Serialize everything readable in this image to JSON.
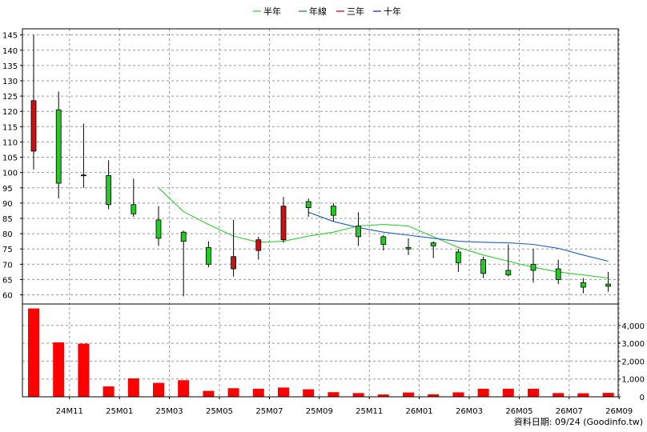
{
  "legend": [
    {
      "label": "半年",
      "color": "#33cc33"
    },
    {
      "label": "年線",
      "color": "#1f5fbf"
    },
    {
      "label": "三年",
      "color": "#cc0000"
    },
    {
      "label": "十年",
      "color": "#2222aa"
    }
  ],
  "source_note": "資料日期: 09/24  (Goodinfo.tw)",
  "chart_data": {
    "type": "candlestick",
    "price_axis": {
      "min": 57,
      "max": 147,
      "ticks": [
        60,
        65,
        70,
        75,
        80,
        85,
        90,
        95,
        100,
        105,
        110,
        115,
        120,
        125,
        130,
        135,
        140,
        145
      ],
      "position": "left"
    },
    "volume_axis": {
      "min": 0,
      "max": 5200,
      "ticks": [
        0,
        1000,
        2000,
        3000,
        4000
      ],
      "tick_labels": [
        "0",
        "1,000",
        "2,000",
        "3,000",
        "4,000"
      ],
      "position": "right"
    },
    "x_labels": [
      {
        "label": "24M11",
        "index": 1
      },
      {
        "label": "25M01",
        "index": 3
      },
      {
        "label": "25M03",
        "index": 5
      },
      {
        "label": "25M05",
        "index": 7
      },
      {
        "label": "25M07",
        "index": 9
      },
      {
        "label": "25M09",
        "index": 11
      },
      {
        "label": "25M11",
        "index": 13
      },
      {
        "label": "26M01",
        "index": 15
      },
      {
        "label": "26M03",
        "index": 17
      },
      {
        "label": "26M05",
        "index": 19
      },
      {
        "label": "26M07",
        "index": 21
      },
      {
        "label": "26M09",
        "index": 23
      }
    ],
    "candles": [
      {
        "open": 107,
        "close": 123.5,
        "high": 145,
        "low": 101
      },
      {
        "open": 120.5,
        "close": 96.5,
        "high": 126.5,
        "low": 91.5
      },
      {
        "open": 99.2,
        "close": 99.0,
        "high": 116,
        "low": 95
      },
      {
        "open": 99,
        "close": 89.5,
        "high": 104,
        "low": 88
      },
      {
        "open": 89.5,
        "close": 86.5,
        "high": 98,
        "low": 85.5
      },
      {
        "open": 84.5,
        "close": 78.5,
        "high": 89,
        "low": 76
      },
      {
        "open": 80.5,
        "close": 77.5,
        "high": 81,
        "low": 59.5
      },
      {
        "open": 75.5,
        "close": 70,
        "high": 77.5,
        "low": 69
      },
      {
        "open": 68.5,
        "close": 72.5,
        "high": 84.5,
        "low": 66
      },
      {
        "open": 74.5,
        "close": 78,
        "high": 79,
        "low": 71.5
      },
      {
        "open": 78,
        "close": 89,
        "high": 92,
        "low": 77
      },
      {
        "open": 90.5,
        "close": 88.5,
        "high": 91.5,
        "low": 85.5
      },
      {
        "open": 89,
        "close": 86,
        "high": 90,
        "low": 84
      },
      {
        "open": 82.5,
        "close": 79,
        "high": 87,
        "low": 76
      },
      {
        "open": 79,
        "close": 76.5,
        "high": 79.5,
        "low": 74.5
      },
      {
        "open": 75.5,
        "close": 75.0,
        "high": 78.5,
        "low": 73
      },
      {
        "open": 77,
        "close": 76,
        "high": 77.5,
        "low": 72
      },
      {
        "open": 74,
        "close": 70.5,
        "high": 75,
        "low": 67.5
      },
      {
        "open": 71.5,
        "close": 67,
        "high": 72.5,
        "low": 65.5
      },
      {
        "open": 68,
        "close": 66.5,
        "high": 76.5,
        "low": 66
      },
      {
        "open": 70,
        "close": 68,
        "high": 75,
        "low": 64
      },
      {
        "open": 68.5,
        "close": 65,
        "high": 71.5,
        "low": 63.5
      },
      {
        "open": 64,
        "close": 62.5,
        "high": 65.5,
        "low": 60.5
      },
      {
        "open": 63.5,
        "close": 62.8,
        "high": 67.5,
        "low": 61
      }
    ],
    "volumes": [
      4950,
      3050,
      2980,
      580,
      1030,
      780,
      930,
      330,
      480,
      450,
      520,
      420,
      260,
      210,
      130,
      240,
      140,
      250,
      450,
      450,
      450,
      210,
      200,
      220
    ],
    "ma_half_year": [
      null,
      null,
      null,
      null,
      null,
      95,
      87.2,
      83,
      79.2,
      77.2,
      77.5,
      79.2,
      80.5,
      82.5,
      83,
      82.5,
      79,
      75.5,
      73,
      71,
      69,
      67.5,
      66.5,
      65.5
    ],
    "ma_year": [
      null,
      null,
      null,
      null,
      null,
      null,
      null,
      null,
      null,
      null,
      null,
      87,
      84,
      82,
      80.5,
      79.5,
      78.5,
      77.5,
      77.2,
      77,
      76.5,
      75.2,
      73,
      71
    ]
  }
}
